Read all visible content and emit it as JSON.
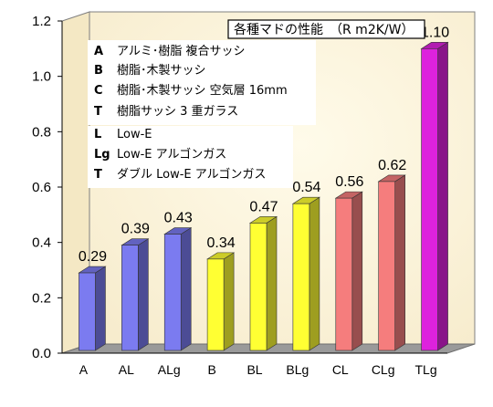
{
  "chart_data": {
    "type": "bar",
    "title": "",
    "xlabel": "",
    "ylabel": "",
    "ylim": [
      0,
      1.2
    ],
    "yticks": [
      "0.0",
      "0.2",
      "0.4",
      "0.6",
      "0.8",
      "1.0",
      "1.2"
    ],
    "categories": [
      "A",
      "AL",
      "ALg",
      "B",
      "BL",
      "BLg",
      "CL",
      "CLg",
      "TLg"
    ],
    "values": [
      0.29,
      0.39,
      0.43,
      0.34,
      0.47,
      0.54,
      0.56,
      0.62,
      1.1
    ],
    "value_labels": [
      "0.29",
      "0.39",
      "0.43",
      "0.34",
      "0.47",
      "0.54",
      "0.56",
      "0.62",
      "1.10"
    ],
    "colors": [
      "#7b7bf0",
      "#7b7bf0",
      "#7b7bf0",
      "#ffff33",
      "#ffff33",
      "#ffff33",
      "#f57d7d",
      "#f57d7d",
      "#dd22dd"
    ],
    "grid": false,
    "legend_position": "top-left",
    "legend_title": "各種マドの性能　（R m2K/W）",
    "legend_entries": [
      {
        "code": "A",
        "text": "アルミ･樹脂 複合サッシ"
      },
      {
        "code": "B",
        "text": "樹脂･木製サッシ"
      },
      {
        "code": "C",
        "text": "樹脂･木製サッシ 空気層 16mm"
      },
      {
        "code": "T",
        "text": "樹脂サッシ 3 重ガラス"
      },
      {
        "code": "L",
        "text": "Low-E"
      },
      {
        "code": "Lg",
        "text": "Low-E アルゴンガス"
      },
      {
        "code": "T",
        "text": "ダブル Low-E アルゴンガス"
      }
    ]
  },
  "colors": {
    "wall": "#fdf5d6",
    "floor": "#9a9a9a",
    "frame": "#808080"
  }
}
